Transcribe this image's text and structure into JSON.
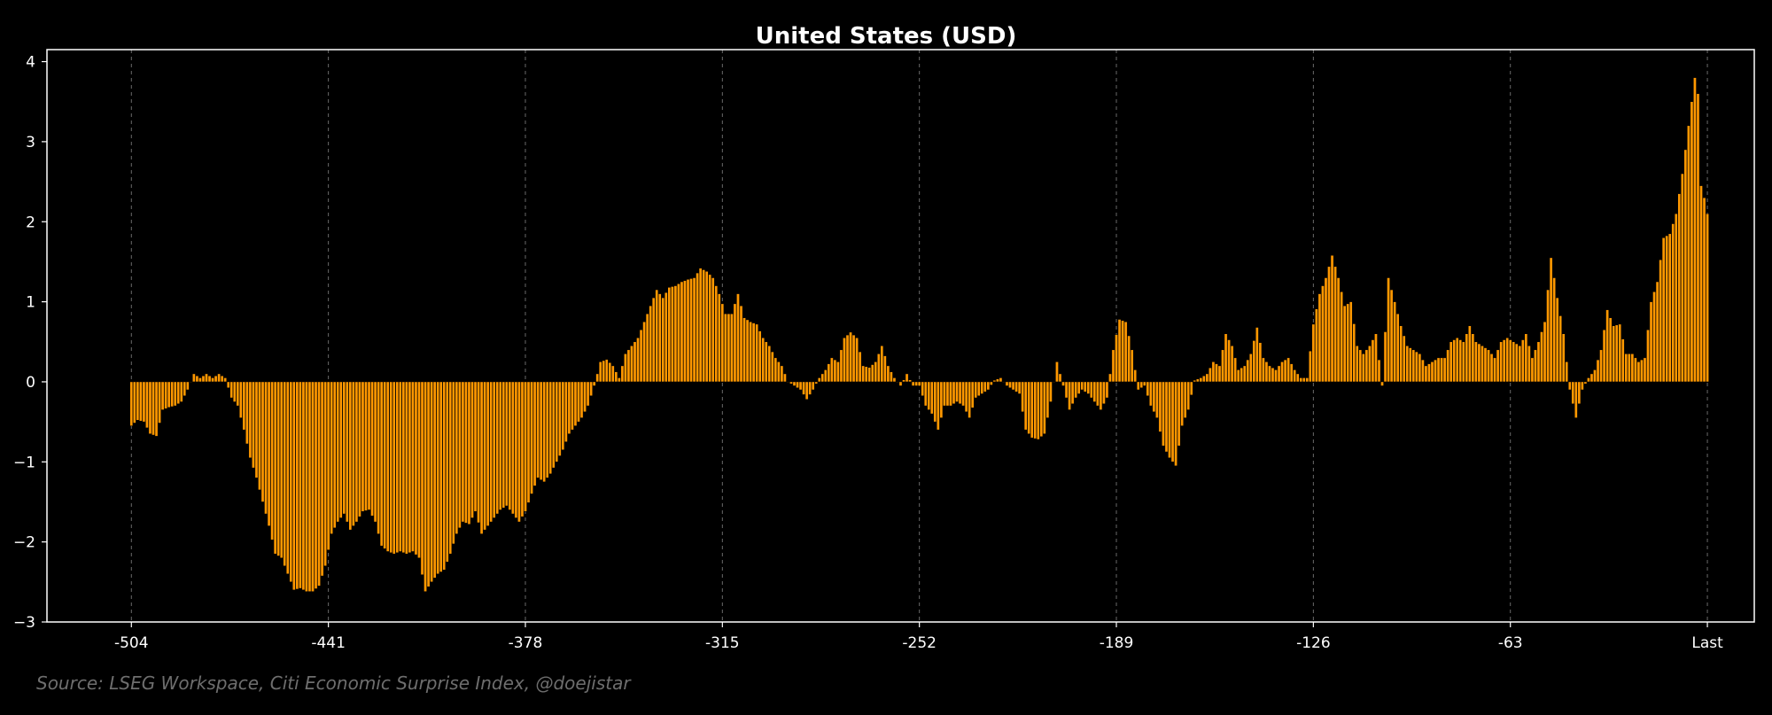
{
  "chart_data": {
    "type": "bar",
    "title": "United States (USD)",
    "xlabel": "",
    "ylabel": "",
    "source": "Source: LSEG Workspace, Citi Economic Surprise Index, @doejistar",
    "x_ticks": [
      {
        "x": -504,
        "label": "-504"
      },
      {
        "x": -441,
        "label": "-441"
      },
      {
        "x": -378,
        "label": "-378"
      },
      {
        "x": -315,
        "label": "-315"
      },
      {
        "x": -252,
        "label": "-252"
      },
      {
        "x": -189,
        "label": "-189"
      },
      {
        "x": -126,
        "label": "-126"
      },
      {
        "x": -63,
        "label": "-63"
      },
      {
        "x": 0,
        "label": "Last"
      }
    ],
    "y_ticks": [
      {
        "y": 4,
        "label": "4"
      },
      {
        "y": 3,
        "label": "3"
      },
      {
        "y": 2,
        "label": "2"
      },
      {
        "y": 1,
        "label": "1"
      },
      {
        "y": 0,
        "label": "0"
      },
      {
        "y": -1,
        "label": "−1"
      },
      {
        "y": -2,
        "label": "−2"
      },
      {
        "y": -3,
        "label": "−3"
      }
    ],
    "xlim": [
      -531,
      15
    ],
    "ylim": [
      -3,
      4.15
    ],
    "grid": "vertical dashed",
    "bar_color": "#ff9800",
    "bar_edge_color": "#000000",
    "keypoints": [
      [
        -504,
        -0.55
      ],
      [
        -502,
        -0.48
      ],
      [
        -500,
        -0.5
      ],
      [
        -498,
        -0.65
      ],
      [
        -496,
        -0.68
      ],
      [
        -494,
        -0.35
      ],
      [
        -492,
        -0.32
      ],
      [
        -490,
        -0.3
      ],
      [
        -488,
        -0.25
      ],
      [
        -486,
        -0.1
      ],
      [
        -484,
        0.1
      ],
      [
        -482,
        0.05
      ],
      [
        -480,
        0.1
      ],
      [
        -478,
        0.05
      ],
      [
        -476,
        0.1
      ],
      [
        -474,
        0.05
      ],
      [
        -472,
        -0.2
      ],
      [
        -470,
        -0.3
      ],
      [
        -468,
        -0.6
      ],
      [
        -466,
        -0.95
      ],
      [
        -464,
        -1.2
      ],
      [
        -462,
        -1.5
      ],
      [
        -460,
        -1.8
      ],
      [
        -458,
        -2.15
      ],
      [
        -456,
        -2.2
      ],
      [
        -454,
        -2.4
      ],
      [
        -452,
        -2.6
      ],
      [
        -450,
        -2.58
      ],
      [
        -448,
        -2.62
      ],
      [
        -446,
        -2.62
      ],
      [
        -444,
        -2.55
      ],
      [
        -442,
        -2.3
      ],
      [
        -440,
        -1.9
      ],
      [
        -438,
        -1.75
      ],
      [
        -436,
        -1.65
      ],
      [
        -434,
        -1.85
      ],
      [
        -432,
        -1.75
      ],
      [
        -430,
        -1.62
      ],
      [
        -428,
        -1.6
      ],
      [
        -426,
        -1.75
      ],
      [
        -424,
        -2.05
      ],
      [
        -422,
        -2.12
      ],
      [
        -420,
        -2.15
      ],
      [
        -418,
        -2.12
      ],
      [
        -416,
        -2.15
      ],
      [
        -414,
        -2.12
      ],
      [
        -412,
        -2.2
      ],
      [
        -410,
        -2.62
      ],
      [
        -408,
        -2.5
      ],
      [
        -406,
        -2.4
      ],
      [
        -404,
        -2.35
      ],
      [
        -402,
        -2.15
      ],
      [
        -400,
        -1.9
      ],
      [
        -398,
        -1.75
      ],
      [
        -396,
        -1.78
      ],
      [
        -394,
        -1.62
      ],
      [
        -392,
        -1.9
      ],
      [
        -390,
        -1.8
      ],
      [
        -388,
        -1.7
      ],
      [
        -386,
        -1.6
      ],
      [
        -384,
        -1.55
      ],
      [
        -382,
        -1.65
      ],
      [
        -380,
        -1.75
      ],
      [
        -378,
        -1.62
      ],
      [
        -376,
        -1.4
      ],
      [
        -374,
        -1.2
      ],
      [
        -372,
        -1.25
      ],
      [
        -370,
        -1.15
      ],
      [
        -368,
        -1.0
      ],
      [
        -366,
        -0.85
      ],
      [
        -364,
        -0.65
      ],
      [
        -362,
        -0.55
      ],
      [
        -360,
        -0.45
      ],
      [
        -358,
        -0.3
      ],
      [
        -356,
        -0.05
      ],
      [
        -354,
        0.25
      ],
      [
        -352,
        0.28
      ],
      [
        -350,
        0.2
      ],
      [
        -348,
        0.05
      ],
      [
        -346,
        0.35
      ],
      [
        -344,
        0.45
      ],
      [
        -342,
        0.55
      ],
      [
        -340,
        0.75
      ],
      [
        -338,
        0.95
      ],
      [
        -336,
        1.15
      ],
      [
        -334,
        1.05
      ],
      [
        -332,
        1.18
      ],
      [
        -330,
        1.2
      ],
      [
        -328,
        1.25
      ],
      [
        -326,
        1.28
      ],
      [
        -324,
        1.3
      ],
      [
        -322,
        1.42
      ],
      [
        -320,
        1.38
      ],
      [
        -318,
        1.3
      ],
      [
        -316,
        1.1
      ],
      [
        -314,
        0.85
      ],
      [
        -312,
        0.85
      ],
      [
        -310,
        1.1
      ],
      [
        -308,
        0.8
      ],
      [
        -306,
        0.75
      ],
      [
        -304,
        0.72
      ],
      [
        -302,
        0.55
      ],
      [
        -300,
        0.45
      ],
      [
        -298,
        0.3
      ],
      [
        -296,
        0.2
      ],
      [
        -294,
        0.0
      ],
      [
        -292,
        -0.05
      ],
      [
        -290,
        -0.1
      ],
      [
        -288,
        -0.22
      ],
      [
        -286,
        -0.1
      ],
      [
        -284,
        0.05
      ],
      [
        -282,
        0.15
      ],
      [
        -280,
        0.3
      ],
      [
        -278,
        0.25
      ],
      [
        -276,
        0.55
      ],
      [
        -274,
        0.62
      ],
      [
        -272,
        0.55
      ],
      [
        -270,
        0.2
      ],
      [
        -268,
        0.18
      ],
      [
        -266,
        0.25
      ],
      [
        -264,
        0.45
      ],
      [
        -262,
        0.2
      ],
      [
        -260,
        0.05
      ],
      [
        -258,
        -0.05
      ],
      [
        -256,
        0.1
      ],
      [
        -254,
        -0.05
      ],
      [
        -252,
        -0.05
      ],
      [
        -250,
        -0.3
      ],
      [
        -248,
        -0.4
      ],
      [
        -246,
        -0.6
      ],
      [
        -244,
        -0.3
      ],
      [
        -242,
        -0.3
      ],
      [
        -240,
        -0.25
      ],
      [
        -238,
        -0.3
      ],
      [
        -236,
        -0.45
      ],
      [
        -234,
        -0.2
      ],
      [
        -232,
        -0.15
      ],
      [
        -230,
        -0.1
      ],
      [
        -228,
        0.02
      ],
      [
        -226,
        0.05
      ],
      [
        -224,
        -0.05
      ],
      [
        -222,
        -0.1
      ],
      [
        -220,
        -0.15
      ],
      [
        -218,
        -0.6
      ],
      [
        -216,
        -0.7
      ],
      [
        -214,
        -0.72
      ],
      [
        -212,
        -0.65
      ],
      [
        -210,
        -0.25
      ],
      [
        -208,
        0.25
      ],
      [
        -206,
        -0.05
      ],
      [
        -204,
        -0.35
      ],
      [
        -202,
        -0.2
      ],
      [
        -200,
        -0.1
      ],
      [
        -198,
        -0.15
      ],
      [
        -196,
        -0.25
      ],
      [
        -194,
        -0.35
      ],
      [
        -192,
        -0.2
      ],
      [
        -190,
        0.4
      ],
      [
        -188,
        0.78
      ],
      [
        -186,
        0.75
      ],
      [
        -184,
        0.4
      ],
      [
        -182,
        -0.1
      ],
      [
        -180,
        -0.05
      ],
      [
        -178,
        -0.3
      ],
      [
        -176,
        -0.45
      ],
      [
        -174,
        -0.8
      ],
      [
        -172,
        -0.95
      ],
      [
        -170,
        -1.05
      ],
      [
        -168,
        -0.55
      ],
      [
        -166,
        -0.35
      ],
      [
        -164,
        0.02
      ],
      [
        -162,
        0.05
      ],
      [
        -160,
        0.1
      ],
      [
        -158,
        0.25
      ],
      [
        -156,
        0.2
      ],
      [
        -154,
        0.6
      ],
      [
        -152,
        0.45
      ],
      [
        -150,
        0.15
      ],
      [
        -148,
        0.2
      ],
      [
        -146,
        0.35
      ],
      [
        -144,
        0.68
      ],
      [
        -142,
        0.3
      ],
      [
        -140,
        0.2
      ],
      [
        -138,
        0.15
      ],
      [
        -136,
        0.25
      ],
      [
        -134,
        0.3
      ],
      [
        -132,
        0.15
      ],
      [
        -130,
        0.05
      ],
      [
        -128,
        0.05
      ],
      [
        -126,
        0.72
      ],
      [
        -124,
        1.1
      ],
      [
        -122,
        1.3
      ],
      [
        -120,
        1.58
      ],
      [
        -118,
        1.3
      ],
      [
        -116,
        0.95
      ],
      [
        -114,
        1.0
      ],
      [
        -112,
        0.45
      ],
      [
        -110,
        0.35
      ],
      [
        -108,
        0.45
      ],
      [
        -106,
        0.6
      ],
      [
        -104,
        -0.05
      ],
      [
        -102,
        1.3
      ],
      [
        -100,
        1.0
      ],
      [
        -98,
        0.7
      ],
      [
        -96,
        0.45
      ],
      [
        -94,
        0.4
      ],
      [
        -92,
        0.35
      ],
      [
        -90,
        0.2
      ],
      [
        -88,
        0.25
      ],
      [
        -86,
        0.3
      ],
      [
        -84,
        0.3
      ],
      [
        -82,
        0.5
      ],
      [
        -80,
        0.55
      ],
      [
        -78,
        0.5
      ],
      [
        -76,
        0.7
      ],
      [
        -74,
        0.5
      ],
      [
        -72,
        0.45
      ],
      [
        -70,
        0.4
      ],
      [
        -68,
        0.3
      ],
      [
        -66,
        0.5
      ],
      [
        -64,
        0.55
      ],
      [
        -62,
        0.5
      ],
      [
        -60,
        0.45
      ],
      [
        -58,
        0.6
      ],
      [
        -56,
        0.3
      ],
      [
        -54,
        0.5
      ],
      [
        -52,
        0.75
      ],
      [
        -50,
        1.55
      ],
      [
        -48,
        1.05
      ],
      [
        -46,
        0.6
      ],
      [
        -44,
        -0.1
      ],
      [
        -42,
        -0.45
      ],
      [
        -40,
        -0.1
      ],
      [
        -38,
        0.05
      ],
      [
        -36,
        0.15
      ],
      [
        -34,
        0.4
      ],
      [
        -32,
        0.9
      ],
      [
        -30,
        0.7
      ],
      [
        -28,
        0.72
      ],
      [
        -26,
        0.35
      ],
      [
        -24,
        0.35
      ],
      [
        -22,
        0.25
      ],
      [
        -20,
        0.3
      ],
      [
        -18,
        1.0
      ],
      [
        -16,
        1.25
      ],
      [
        -14,
        1.8
      ],
      [
        -12,
        1.85
      ],
      [
        -10,
        2.1
      ],
      [
        -8,
        2.6
      ],
      [
        -6,
        3.2
      ],
      [
        -4,
        3.8
      ],
      [
        -3,
        3.6
      ],
      [
        -2,
        2.45
      ],
      [
        -1,
        2.3
      ],
      [
        0,
        2.1
      ]
    ]
  }
}
